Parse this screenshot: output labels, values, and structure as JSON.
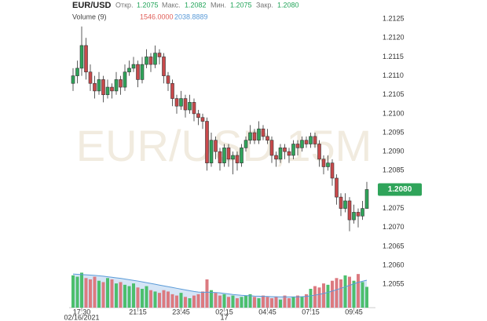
{
  "chart_data": {
    "type": "candlestick",
    "title": "EUR/USD",
    "watermark": "EUR/USD,15M",
    "header": {
      "open_label": "Откр.",
      "high_label": "Макс.",
      "low_label": "Мин.",
      "close_label": "Закр.",
      "volume_label": "Volume (9)",
      "volume_value": "1546.0000",
      "volume_ma_value": "2038.8889"
    },
    "last_price": {
      "value": 1.208,
      "label": "1.2080"
    },
    "up_color": "#2fa45a",
    "down_color": "#c8494b",
    "ylim": [
      1.2048,
      1.213
    ],
    "yticks": [
      1.2055,
      {
        "value": 1.206,
        "label": "1.2060"
      },
      1.2065,
      {
        "value": 1.207,
        "label": "1.2070"
      },
      1.2075,
      {
        "value": 1.208,
        "label": "1.2080"
      },
      1.2085,
      {
        "value": 1.209,
        "label": "1.2090"
      },
      1.2095,
      {
        "value": 1.21,
        "label": "1.2100"
      },
      1.2105,
      {
        "value": 1.211,
        "label": "1.2110"
      },
      1.2115,
      {
        "value": 1.212,
        "label": "1.2120"
      },
      1.2125
    ],
    "categories": [
      null,
      null,
      "17:30",
      null,
      null,
      null,
      null,
      null,
      null,
      null,
      null,
      null,
      null,
      null,
      null,
      "21:15",
      null,
      null,
      null,
      null,
      null,
      null,
      null,
      null,
      null,
      "23:45",
      null,
      null,
      null,
      null,
      null,
      null,
      null,
      null,
      null,
      "02:15",
      null,
      null,
      null,
      null,
      null,
      null,
      null,
      null,
      null,
      "04:45",
      null,
      null,
      null,
      null,
      null,
      null,
      null,
      null,
      null,
      "07:15",
      null,
      null,
      null,
      null,
      null,
      null,
      null,
      null,
      null,
      "09:45",
      null,
      null,
      null
    ],
    "date_labels": [
      null,
      null,
      "02/16/2021",
      null,
      null,
      null,
      null,
      null,
      null,
      null,
      null,
      null,
      null,
      null,
      null,
      null,
      null,
      null,
      null,
      null,
      null,
      null,
      null,
      null,
      null,
      null,
      null,
      null,
      null,
      null,
      null,
      null,
      null,
      null,
      null,
      "17",
      null,
      null,
      null,
      null,
      null,
      null,
      null,
      null,
      null,
      null,
      null,
      null,
      null,
      null,
      null,
      null,
      null,
      null,
      null,
      null,
      null,
      null,
      null,
      null,
      null,
      null,
      null,
      null,
      null,
      null,
      null,
      null,
      null
    ],
    "ohlc": [
      [
        1.2108,
        1.2112,
        1.2106,
        1.211
      ],
      [
        1.211,
        1.2114,
        1.2108,
        1.2112
      ],
      [
        1.2112,
        1.2123,
        1.211,
        1.2118
      ],
      [
        1.2118,
        1.212,
        1.2109,
        1.2111
      ],
      [
        1.2111,
        1.2113,
        1.2106,
        1.2108
      ],
      [
        1.2108,
        1.211,
        1.2104,
        1.2106
      ],
      [
        1.2106,
        1.2111,
        1.2105,
        1.2109
      ],
      [
        1.2109,
        1.211,
        1.2103,
        1.2105
      ],
      [
        1.2105,
        1.2109,
        1.2104,
        1.2107
      ],
      [
        1.2107,
        1.2108,
        1.2104,
        1.2106
      ],
      [
        1.2106,
        1.2111,
        1.2105,
        1.2109
      ],
      [
        1.2109,
        1.211,
        1.2105,
        1.2107
      ],
      [
        1.2107,
        1.2113,
        1.2106,
        1.2111
      ],
      [
        1.2111,
        1.2114,
        1.211,
        1.2112
      ],
      [
        1.2112,
        1.2115,
        1.2111,
        1.2113
      ],
      [
        1.2113,
        1.2114,
        1.2107,
        1.2109
      ],
      [
        1.2109,
        1.2115,
        1.2108,
        1.2113
      ],
      [
        1.2113,
        1.2117,
        1.2112,
        1.2115
      ],
      [
        1.2115,
        1.2116,
        1.2111,
        1.2113
      ],
      [
        1.2113,
        1.2118,
        1.2112,
        1.2116
      ],
      [
        1.2116,
        1.2117,
        1.2113,
        1.2115
      ],
      [
        1.2115,
        1.2116,
        1.2108,
        1.211
      ],
      [
        1.211,
        1.2111,
        1.2106,
        1.2108
      ],
      [
        1.2108,
        1.2109,
        1.2102,
        1.2104
      ],
      [
        1.2104,
        1.2105,
        1.21,
        1.2102
      ],
      [
        1.2102,
        1.2106,
        1.2101,
        1.2104
      ],
      [
        1.2104,
        1.2105,
        1.2099,
        1.2101
      ],
      [
        1.2101,
        1.2105,
        1.21,
        1.2103
      ],
      [
        1.2103,
        1.2104,
        1.2098,
        1.21
      ],
      [
        1.21,
        1.2101,
        1.2097,
        1.2099
      ],
      [
        1.2099,
        1.21,
        1.2096,
        1.2098
      ],
      [
        1.2098,
        1.2099,
        1.2085,
        1.2087
      ],
      [
        1.2087,
        1.2095,
        1.2086,
        1.2093
      ],
      [
        1.2093,
        1.2094,
        1.2088,
        1.209
      ],
      [
        1.209,
        1.2091,
        1.2085,
        1.2087
      ],
      [
        1.2087,
        1.2092,
        1.2086,
        1.2091
      ],
      [
        1.2091,
        1.2092,
        1.2086,
        1.2088
      ],
      [
        1.2088,
        1.209,
        1.2084,
        1.2089
      ],
      [
        1.2089,
        1.209,
        1.2085,
        1.2087
      ],
      [
        1.2087,
        1.2092,
        1.2086,
        1.2091
      ],
      [
        1.2091,
        1.2094,
        1.209,
        1.2093
      ],
      [
        1.2093,
        1.2097,
        1.2092,
        1.2095
      ],
      [
        1.2095,
        1.2096,
        1.2092,
        1.2093
      ],
      [
        1.2093,
        1.2098,
        1.2092,
        1.2096
      ],
      [
        1.2096,
        1.2097,
        1.2093,
        1.2094
      ],
      [
        1.2094,
        1.2096,
        1.2092,
        1.2093
      ],
      [
        1.2093,
        1.2094,
        1.2087,
        1.2089
      ],
      [
        1.2089,
        1.209,
        1.2086,
        1.2088
      ],
      [
        1.2088,
        1.2092,
        1.2087,
        1.2091
      ],
      [
        1.2091,
        1.2092,
        1.2088,
        1.209
      ],
      [
        1.209,
        1.2091,
        1.2087,
        1.2089
      ],
      [
        1.2089,
        1.2093,
        1.2088,
        1.2092
      ],
      [
        1.2092,
        1.2093,
        1.2089,
        1.2091
      ],
      [
        1.2091,
        1.2094,
        1.209,
        1.2093
      ],
      [
        1.2093,
        1.2094,
        1.2091,
        1.2092
      ],
      [
        1.2092,
        1.2095,
        1.2091,
        1.2094
      ],
      [
        1.2094,
        1.2095,
        1.2091,
        1.2092
      ],
      [
        1.2092,
        1.2093,
        1.2086,
        1.2088
      ],
      [
        1.2088,
        1.2089,
        1.2084,
        1.2086
      ],
      [
        1.2086,
        1.2089,
        1.2085,
        1.2087
      ],
      [
        1.2087,
        1.2088,
        1.2081,
        1.2083
      ],
      [
        1.2083,
        1.2084,
        1.2076,
        1.2078
      ],
      [
        1.2078,
        1.2079,
        1.2073,
        1.2075
      ],
      [
        1.2075,
        1.2079,
        1.2074,
        1.2077
      ],
      [
        1.2077,
        1.2078,
        1.2069,
        1.2072
      ],
      [
        1.2072,
        1.2076,
        1.2071,
        1.2074
      ],
      [
        1.2074,
        1.2075,
        1.207,
        1.2073
      ],
      [
        1.2073,
        1.2077,
        1.2072,
        1.2075
      ],
      [
        1.2075,
        1.2082,
        1.2075,
        1.208
      ]
    ],
    "volume": {
      "vlim": [
        0,
        2800
      ],
      "up_color": "#4cbf6d",
      "down_color": "#dc7a80",
      "ma_color": "#5b9bd8",
      "ma_fill": "#c3daf2",
      "values": [
        2400,
        2300,
        2600,
        2200,
        2100,
        2300,
        2000,
        1900,
        2200,
        2100,
        1800,
        1900,
        1700,
        1600,
        1800,
        1500,
        1400,
        1600,
        1300,
        1200,
        1100,
        1300,
        1200,
        1000,
        900,
        1100,
        800,
        700,
        900,
        1000,
        1200,
        2100,
        1300,
        1100,
        900,
        1000,
        800,
        900,
        700,
        800,
        900,
        1000,
        800,
        700,
        900,
        800,
        700,
        800,
        600,
        900,
        700,
        800,
        900,
        800,
        1000,
        1400,
        1600,
        1500,
        1800,
        1700,
        2000,
        2200,
        2100,
        2400,
        2300,
        2000,
        2500,
        1900,
        1546
      ],
      "ma": [
        2500,
        2480,
        2460,
        2440,
        2420,
        2400,
        2370,
        2340,
        2300,
        2260,
        2220,
        2180,
        2130,
        2080,
        2030,
        1980,
        1920,
        1860,
        1800,
        1740,
        1680,
        1620,
        1560,
        1500,
        1440,
        1380,
        1320,
        1260,
        1200,
        1160,
        1140,
        1150,
        1140,
        1120,
        1100,
        1060,
        1020,
        980,
        950,
        920,
        900,
        880,
        860,
        850,
        840,
        830,
        820,
        810,
        800,
        800,
        800,
        800,
        800,
        820,
        840,
        880,
        930,
        990,
        1060,
        1140,
        1230,
        1330,
        1440,
        1550,
        1660,
        1770,
        1880,
        1960,
        2038.8889
      ]
    }
  }
}
